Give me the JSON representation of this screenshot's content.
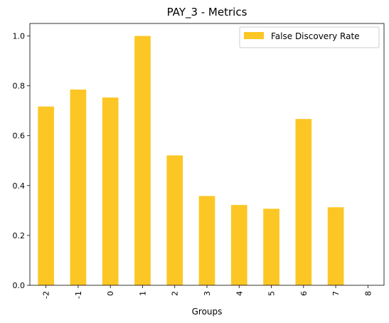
{
  "chart_data": {
    "type": "bar",
    "title": "PAY_3 - Metrics",
    "xlabel": "Groups",
    "ylabel": "",
    "categories": [
      "-2",
      "-1",
      "0",
      "1",
      "2",
      "3",
      "4",
      "5",
      "6",
      "7",
      "8"
    ],
    "series": [
      {
        "name": "False Discovery Rate",
        "color": "#fcc624",
        "values": [
          0.717,
          0.785,
          0.753,
          1.0,
          0.521,
          0.358,
          0.322,
          0.307,
          0.667,
          0.313,
          0.0
        ]
      }
    ],
    "ylim": [
      0,
      1.05
    ],
    "yticks": [
      "0.0",
      "0.2",
      "0.4",
      "0.6",
      "0.8",
      "1.0"
    ],
    "legend_position": "top-right",
    "grid": false
  }
}
